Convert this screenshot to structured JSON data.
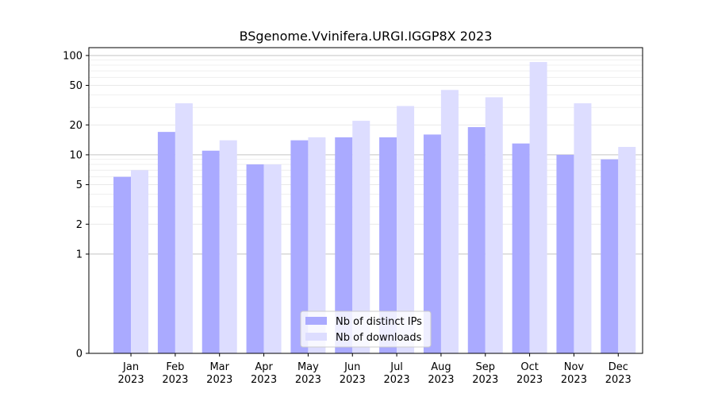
{
  "chart_data": {
    "type": "bar",
    "title": "BSgenome.Vvinifera.URGI.IGGP8X 2023",
    "xlabel": "",
    "ylabel": "",
    "y_scale": "symlog",
    "ylim": [
      0,
      120
    ],
    "y_ticks": [
      0,
      1,
      2,
      5,
      10,
      20,
      50,
      100
    ],
    "grid": "horizontal",
    "legend_position": "bottom-center",
    "categories": [
      "Jan\n2023",
      "Feb\n2023",
      "Mar\n2023",
      "Apr\n2023",
      "May\n2023",
      "Jun\n2023",
      "Jul\n2023",
      "Aug\n2023",
      "Sep\n2023",
      "Oct\n2023",
      "Nov\n2023",
      "Dec\n2023"
    ],
    "series": [
      {
        "name": "Nb of distinct IPs",
        "color": "#aaaaff",
        "values": [
          6,
          17,
          11,
          8,
          14,
          15,
          15,
          16,
          19,
          13,
          10,
          9
        ]
      },
      {
        "name": "Nb of downloads",
        "color": "#ddddff",
        "values": [
          7,
          33,
          14,
          8,
          15,
          22,
          31,
          45,
          38,
          86,
          33,
          12
        ]
      }
    ]
  }
}
